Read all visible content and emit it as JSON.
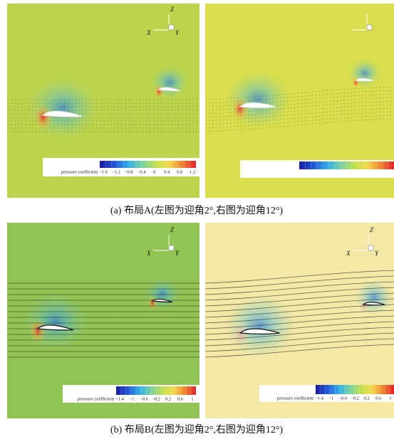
{
  "figures": [
    {
      "caption": "(a) 布局A(左图为迎角2°,右图为迎角12°)",
      "panels": [
        {
          "axes": {
            "z": "Z",
            "x": "X",
            "y": "Y"
          },
          "colorbar": {
            "title": "pressure coefficient",
            "ticks": [
              "−1.6",
              "−1.2",
              "−0.8",
              "−0.4",
              "0",
              "0.4",
              "0.8",
              "1.2"
            ]
          }
        },
        {
          "axes": {},
          "colorbar": {
            "ticks": []
          }
        }
      ]
    },
    {
      "caption": "(b) 布局B(左图为迎角2°,右图为迎角12°)",
      "panels": [
        {
          "axes": {
            "z": "Z",
            "x": "X",
            "y": "Y"
          },
          "colorbar": {
            "title": "pressure coefficient",
            "ticks": [
              "−1.4",
              "−1",
              "−0.6",
              "−0.2",
              "0.2",
              "0.6",
              "1"
            ]
          }
        },
        {
          "axes": {
            "z": "Z",
            "x": "X",
            "y": "Y"
          },
          "colorbar": {
            "title": "pressure coefficient",
            "ticks": [
              "−1.4",
              "−1",
              "−0.6",
              "−0.2",
              "0.2",
              "0.6",
              "1"
            ]
          }
        }
      ]
    }
  ]
}
